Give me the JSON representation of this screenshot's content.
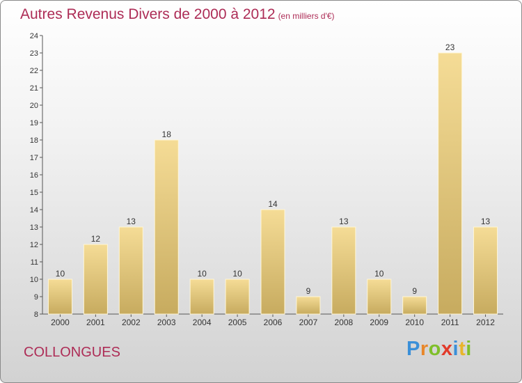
{
  "title": "Autres Revenus Divers de 2000 à 2012",
  "subtitle": "(en milliers d'€)",
  "commune": "COLLONGUES",
  "logo": {
    "letters": [
      "P",
      "r",
      "o",
      "x",
      "i",
      "t",
      "i"
    ],
    "colors": [
      "#3a8fd8",
      "#e8872a",
      "#7fbf2a",
      "#e23a2a",
      "#3a8fd8",
      "#e8b52a",
      "#7fbf2a"
    ]
  },
  "colors": {
    "accent": "#ad2c56",
    "bar_top": "#f5dc96",
    "bar_bottom": "#c7ab5f"
  },
  "chart_data": {
    "type": "bar",
    "categories": [
      "2000",
      "2001",
      "2002",
      "2003",
      "2004",
      "2005",
      "2006",
      "2007",
      "2008",
      "2009",
      "2010",
      "2011",
      "2012"
    ],
    "values": [
      10,
      12,
      13,
      18,
      10,
      10,
      14,
      9,
      13,
      10,
      9,
      23,
      13
    ],
    "title": "Autres Revenus Divers de 2000 à 2012",
    "subtitle": "(en milliers d'€)",
    "ylim": [
      8,
      24
    ],
    "yticks": [
      8,
      9,
      10,
      11,
      12,
      13,
      14,
      15,
      16,
      17,
      18,
      19,
      20,
      21,
      22,
      23,
      24
    ],
    "grid": false,
    "data_labels": true
  }
}
